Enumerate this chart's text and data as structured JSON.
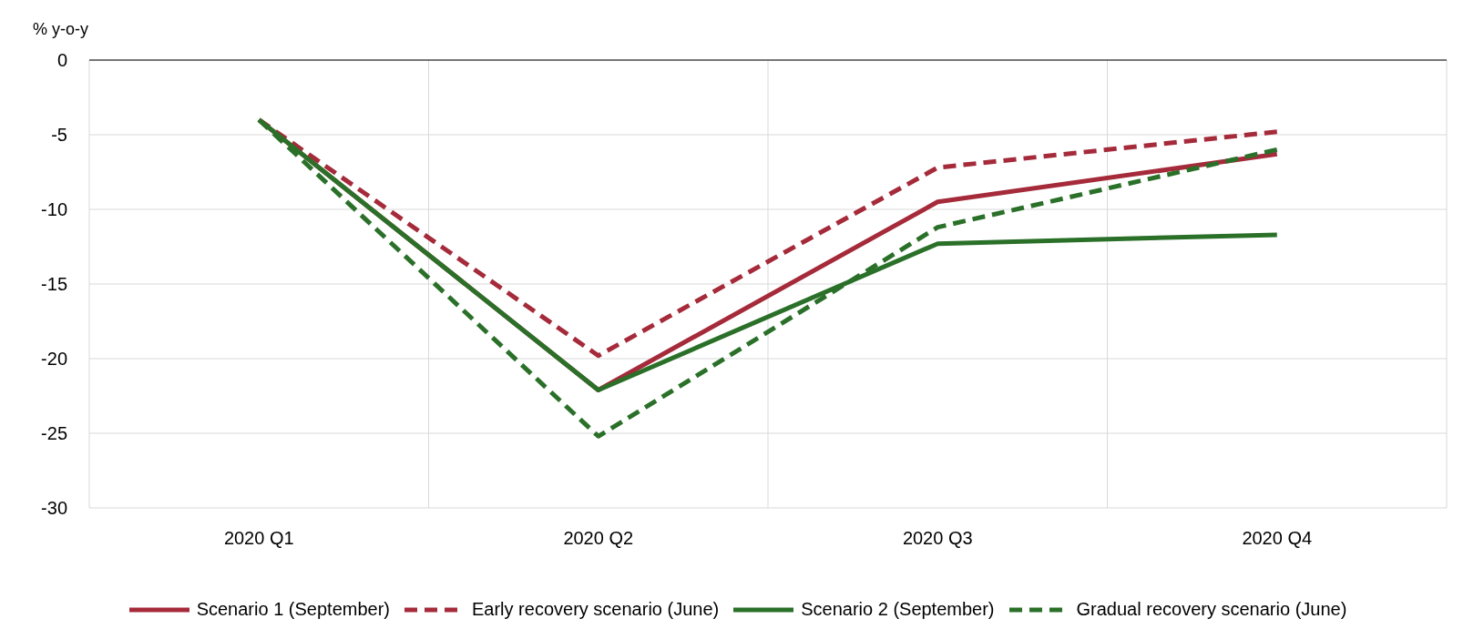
{
  "chart_data": {
    "type": "line",
    "ylabel": "% y-o-y",
    "categories": [
      "2020 Q1",
      "2020 Q2",
      "2020 Q3",
      "2020 Q4"
    ],
    "series": [
      {
        "name": "Scenario 1 (September)",
        "color": "#a52a3a",
        "line_style": "solid",
        "values": [
          -4,
          -22.1,
          -9.5,
          -6.3
        ]
      },
      {
        "name": "Early recovery scenario (June)",
        "color": "#a52a3a",
        "line_style": "dashed",
        "values": [
          -4,
          -19.8,
          -7.2,
          -4.8
        ]
      },
      {
        "name": "Scenario 2 (September)",
        "color": "#2a7029",
        "line_style": "solid",
        "values": [
          -4,
          -22.1,
          -12.3,
          -11.7
        ]
      },
      {
        "name": "Gradual recovery scenario (June)",
        "color": "#2a7029",
        "line_style": "dashed",
        "values": [
          -4,
          -25.2,
          -11.2,
          -6.0
        ]
      }
    ],
    "ylim": [
      -30,
      0
    ],
    "yticks": [
      -30,
      -25,
      -20,
      -15,
      -10,
      -5,
      0
    ],
    "grid": true,
    "legend": "bottom",
    "marker": "none"
  }
}
